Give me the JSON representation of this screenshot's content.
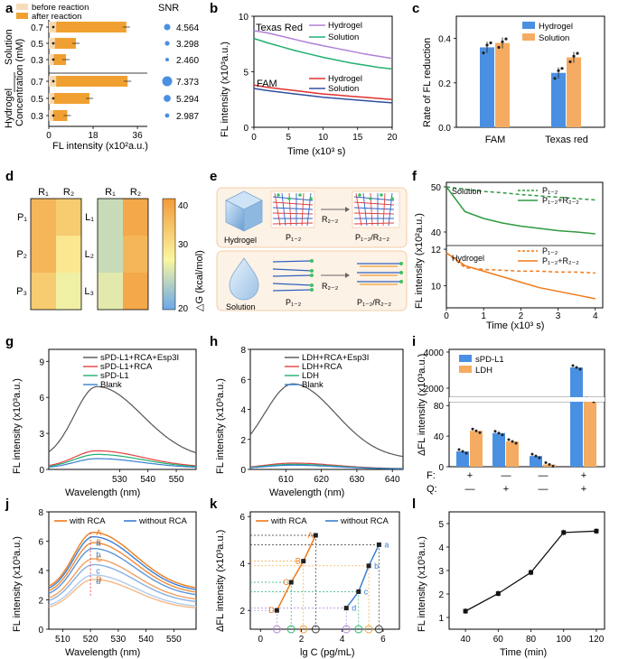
{
  "panel_labels": [
    "a",
    "b",
    "c",
    "d",
    "e",
    "f",
    "g",
    "h",
    "i",
    "j",
    "k",
    "l"
  ],
  "colors": {
    "orange": "#f0a030",
    "blue": "#4a90e2",
    "purple": "#b080d8",
    "green": "#22b070",
    "red": "#e03030",
    "navy": "#3050a0",
    "gray": "#555555",
    "darkgreen": "#2e9a40",
    "darkorange": "#f07a1a",
    "legblue": "#3a7fd0"
  },
  "chart_data": [
    {
      "id": "a",
      "type": "bar",
      "orientation": "horizontal",
      "legend": [
        "before reaction",
        "after reaction"
      ],
      "xlabel": "FL intensity (x10²a.u.)",
      "ylabel": "Concentration (mM)",
      "xticks": [
        "0",
        "18",
        "36"
      ],
      "xlim": [
        0,
        40
      ],
      "groups": [
        "Solution",
        "Hydrogel"
      ],
      "categories": [
        "0.7",
        "0.5",
        "0.3",
        "0.7",
        "0.5",
        "0.3"
      ],
      "before": [
        3.0,
        2.5,
        2.0,
        3.0,
        2.2,
        1.8
      ],
      "after": [
        31.5,
        11.0,
        7.0,
        32.0,
        16.5,
        7.5
      ],
      "snr_label": "SNR",
      "snr": [
        "4.564",
        "3.298",
        "2.460",
        "7.373",
        "5.294",
        "2.987"
      ]
    },
    {
      "id": "b",
      "type": "line",
      "xlabel": "Time (x10³ s)",
      "ylabel": "FL intensity (x10³a.u.)",
      "xlim": [
        0,
        20
      ],
      "ylim": [
        0,
        10
      ],
      "xticks": [
        "0",
        "5",
        "10",
        "15",
        "20"
      ],
      "yticks": [
        "0",
        "5",
        "10"
      ],
      "annotations": [
        "Texas Red",
        "FAM"
      ],
      "series": [
        {
          "name": "Hydrogel",
          "group": "Texas Red",
          "values": [
            8.7,
            8.5,
            8.2,
            7.9,
            7.6,
            7.35,
            7.1,
            6.85,
            6.6,
            6.4,
            6.2
          ]
        },
        {
          "name": "Solution",
          "group": "Texas Red",
          "values": [
            8.0,
            7.6,
            7.25,
            6.9,
            6.6,
            6.3,
            6.05,
            5.8,
            5.6,
            5.4,
            5.25
          ]
        },
        {
          "name": "Hydrogel",
          "group": "FAM",
          "values": [
            3.8,
            3.6,
            3.45,
            3.3,
            3.15,
            3.0,
            2.9,
            2.8,
            2.7,
            2.6,
            2.5
          ]
        },
        {
          "name": "Solution",
          "group": "FAM",
          "values": [
            3.5,
            3.3,
            3.15,
            3.0,
            2.85,
            2.7,
            2.6,
            2.5,
            2.4,
            2.3,
            2.2
          ]
        }
      ],
      "x": [
        0,
        2,
        4,
        6,
        8,
        10,
        12,
        14,
        16,
        18,
        20
      ]
    },
    {
      "id": "c",
      "type": "bar",
      "ylabel": "Rate of FL reduction",
      "categories": [
        "FAM",
        "Texas red"
      ],
      "ylim": [
        0,
        0.5
      ],
      "yticks": [
        "0.0",
        "0.2",
        "0.4"
      ],
      "series": [
        {
          "name": "Hydrogel",
          "values": [
            0.36,
            0.245
          ]
        },
        {
          "name": "Solution",
          "values": [
            0.38,
            0.315
          ]
        }
      ]
    },
    {
      "id": "d",
      "type": "heatmap",
      "cbar_label": "△G (kcal/mol)",
      "cbar_ticks": [
        "20",
        "30",
        "40"
      ],
      "cols": [
        "R₁",
        "R₂"
      ],
      "left_rows": [
        "P₁",
        "P₂",
        "P₃"
      ],
      "left_values": [
        [
          40,
          37
        ],
        [
          40,
          33
        ],
        [
          37,
          30
        ]
      ],
      "right_rows": [
        "L₁",
        "L₂",
        "L₃"
      ],
      "right_values": [
        [
          27,
          42
        ],
        [
          27,
          40
        ],
        [
          29,
          42
        ]
      ]
    },
    {
      "id": "f",
      "type": "line",
      "xlabel": "Time (x10³ s)",
      "ylabel": "FL intensity (x10²a.u.)",
      "xticks": [
        "0",
        "1",
        "2",
        "3",
        "4"
      ],
      "yticks_top": [
        "40",
        "50"
      ],
      "yticks_bottom": [
        "10",
        "12"
      ],
      "annotations": [
        "Solution",
        "Hydrogel"
      ],
      "legend": [
        "P₁₋₂",
        "P₁₋₂+R₂₋₂"
      ],
      "x": [
        0,
        0.5,
        1,
        1.5,
        2,
        2.5,
        3,
        3.5,
        4
      ],
      "series": [
        {
          "name": "Solution P1-2",
          "dashed": true,
          "values": [
            50,
            49.5,
            49,
            48.7,
            48.3,
            48,
            47.7,
            47.4,
            47.1
          ]
        },
        {
          "name": "Solution P1-2+R2-2",
          "dashed": false,
          "values": [
            50,
            44.5,
            43,
            42,
            41.3,
            40.8,
            40.3,
            40,
            39.6
          ]
        },
        {
          "name": "Hydrogel P1-2",
          "dashed": true,
          "values": [
            11.8,
            11.0,
            10.9,
            10.85,
            10.8,
            10.8,
            10.75,
            10.75,
            10.7
          ]
        },
        {
          "name": "Hydrogel P1-2+R2-2",
          "dashed": false,
          "values": [
            11.8,
            11.1,
            10.8,
            10.5,
            10.2,
            9.9,
            9.7,
            9.5,
            9.3
          ]
        }
      ]
    },
    {
      "id": "g",
      "type": "line",
      "xlabel": "Wavelength (nm)",
      "ylabel": "FL intensity (x10³a.u.)",
      "ylim": [
        0,
        10
      ],
      "xticks": [
        "530",
        "540",
        "550"
      ],
      "yticks": [
        "0",
        "3",
        "6",
        "9"
      ],
      "series": [
        {
          "name": "sPD-L1+RCA+Esp3I",
          "peak": 6.9
        },
        {
          "name": "sPD-L1+RCA",
          "peak": 1.55
        },
        {
          "name": "sPD-L1",
          "peak": 1.25
        },
        {
          "name": "Blank",
          "peak": 0.9
        }
      ]
    },
    {
      "id": "h",
      "type": "line",
      "xlabel": "Wavelength (nm)",
      "ylabel": "FL intensity (x10³a.u.)",
      "ylim": [
        0,
        8
      ],
      "xticks": [
        "610",
        "620",
        "630",
        "640"
      ],
      "yticks": [
        "0",
        "2",
        "4",
        "6",
        "8"
      ],
      "series": [
        {
          "name": "LDH+RCA+Esp3I",
          "peak": 5.7
        },
        {
          "name": "LDH+RCA",
          "peak": 0.42
        },
        {
          "name": "LDH",
          "peak": 0.34
        },
        {
          "name": "Blank",
          "peak": 0.28
        }
      ]
    },
    {
      "id": "i",
      "type": "bar",
      "ylabel": "ΔFL intensity (x10³a.u.)",
      "yticks_top": [
        "2000",
        "4000"
      ],
      "yticks_bottom": [
        "0",
        "40",
        "80"
      ],
      "row_labels": [
        "F:",
        "Q:"
      ],
      "conditions": [
        {
          "F": "+",
          "Q": "—"
        },
        {
          "F": "—",
          "Q": "+"
        },
        {
          "F": "—",
          "Q": "—"
        },
        {
          "F": "+",
          "Q": "+"
        }
      ],
      "series": [
        {
          "name": "sPD-L1",
          "values": [
            20,
            44,
            14,
            3150
          ]
        },
        {
          "name": "LDH",
          "values": [
            47,
            33,
            3,
            1350
          ]
        }
      ]
    },
    {
      "id": "j",
      "type": "line",
      "xlabel": "Wavelength (nm)",
      "ylabel": "FL intensity (x10³a.u.)",
      "ylim": [
        0,
        8
      ],
      "xticks": [
        "510",
        "520",
        "530",
        "540",
        "550"
      ],
      "yticks": [
        "0",
        "2",
        "4",
        "6",
        "8"
      ],
      "legend": [
        "with RCA",
        "without RCA"
      ],
      "with_rca_letters": [
        "A",
        "B",
        "C",
        "D"
      ],
      "with_rca_peaks": [
        6.6,
        5.9,
        4.8,
        3.4
      ],
      "without_rca_letters": [
        "a",
        "b",
        "c",
        "d"
      ],
      "without_rca_peaks": [
        6.3,
        5.5,
        4.4,
        3.7
      ]
    },
    {
      "id": "k",
      "type": "scatter",
      "xlabel": "lg C (pg/mL)",
      "ylabel": "ΔFL intensity (x10³a.u.)",
      "xticks": [
        "0",
        "2",
        "4",
        "6"
      ],
      "yticks": [
        "2",
        "4",
        "6"
      ],
      "legend": [
        "with RCA",
        "without RCA"
      ],
      "with_rca": {
        "labels": [
          "D",
          "C",
          "B",
          "A"
        ],
        "x": [
          0.8,
          1.5,
          2.1,
          2.7
        ],
        "y": [
          2.0,
          3.2,
          4.1,
          5.2
        ]
      },
      "without_rca": {
        "labels": [
          "d",
          "c",
          "b",
          "a"
        ],
        "x": [
          4.2,
          4.8,
          5.3,
          5.8
        ],
        "y": [
          2.1,
          2.8,
          3.9,
          4.8
        ]
      }
    },
    {
      "id": "l",
      "type": "line",
      "xlabel": "Time (min)",
      "ylabel": "FL intensity (x10³a.u.)",
      "xlim": [
        30,
        125
      ],
      "ylim": [
        0.5,
        5.5
      ],
      "xticks": [
        "40",
        "60",
        "80",
        "100",
        "120"
      ],
      "yticks": [
        "1",
        "2",
        "3",
        "4",
        "5"
      ],
      "x": [
        40,
        60,
        80,
        100,
        120
      ],
      "y": [
        1.27,
        2.02,
        2.92,
        4.62,
        4.68
      ]
    }
  ],
  "panel_e": {
    "top_label": "Hydrogel",
    "bottom_label": "Solution",
    "probe": "P₁₋₂",
    "reagent": "R₂₋₂",
    "product": "P₁₋₂/R₂₋₂"
  }
}
